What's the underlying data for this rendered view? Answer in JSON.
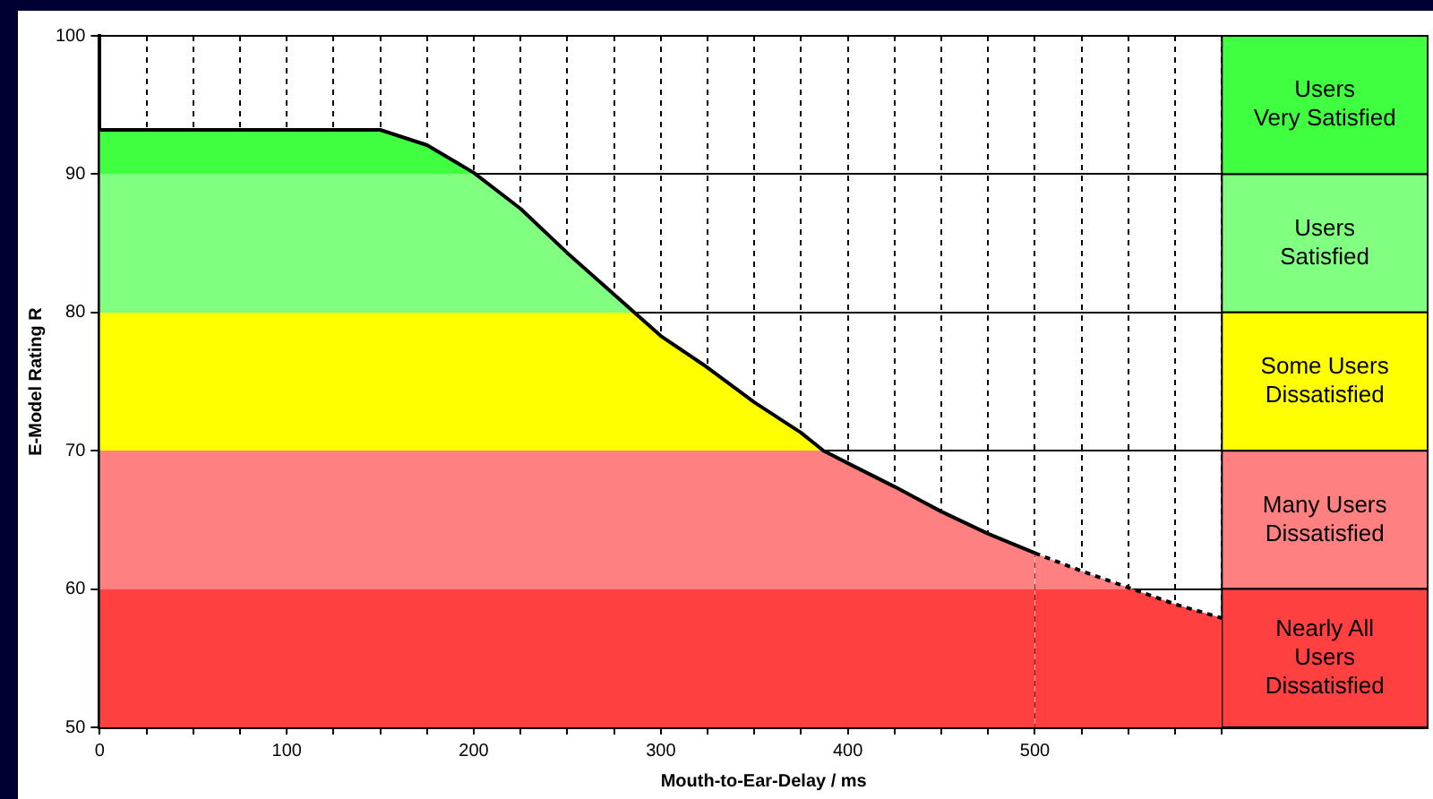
{
  "chart_data": {
    "type": "area",
    "xlabel": "Mouth-to-Ear-Delay / ms",
    "ylabel": "E-Model Rating R",
    "xlim": [
      0,
      710
    ],
    "ylim": [
      50,
      100
    ],
    "xticks": [
      0,
      {
        "value": 25,
        "label": null
      },
      {
        "value": 50,
        "label": null
      },
      {
        "value": 75,
        "label": null
      },
      100,
      {
        "value": 125,
        "label": null
      },
      {
        "value": 150,
        "label": null
      },
      {
        "value": 175,
        "label": null
      },
      200,
      {
        "value": 225,
        "label": null
      },
      {
        "value": 250,
        "label": null
      },
      {
        "value": 275,
        "label": null
      },
      300,
      {
        "value": 325,
        "label": null
      },
      {
        "value": 350,
        "label": null
      },
      {
        "value": 375,
        "label": null
      },
      400,
      {
        "value": 425,
        "label": null
      },
      {
        "value": 450,
        "label": null
      },
      {
        "value": 475,
        "label": null
      },
      500,
      {
        "value": 525,
        "label": null
      },
      {
        "value": 550,
        "label": null
      },
      {
        "value": 575,
        "label": null
      },
      {
        "value": 600,
        "label": null
      }
    ],
    "yticks": [
      50,
      60,
      70,
      80,
      90,
      100
    ],
    "grid": true,
    "legend": false,
    "series": [
      {
        "color": "#000000",
        "line_style": "solid",
        "x": [
          0,
          50,
          100,
          125,
          150,
          175,
          200,
          225,
          250,
          275,
          285,
          300,
          323,
          350,
          375,
          387,
          400,
          425,
          450,
          475,
          500
        ],
        "values": [
          93.2,
          93.2,
          93.2,
          93.2,
          93.2,
          92.1,
          90.1,
          87.5,
          84.3,
          81.3,
          80.1,
          78.3,
          76.2,
          73.5,
          71.3,
          70.0,
          69.1,
          67.4,
          65.6,
          64.0,
          62.6
        ]
      },
      {
        "color": "#000000",
        "line_style": "dashed",
        "x": [
          500,
          525,
          550,
          575,
          600
        ],
        "values": [
          62.6,
          61.3,
          60.1,
          58.9,
          57.9
        ]
      }
    ],
    "bands": [
      {
        "axis": "y",
        "from": 90,
        "to": 100,
        "label": "Users\nVery Satisfied",
        "color": "#40ff40"
      },
      {
        "axis": "y",
        "from": 80,
        "to": 90,
        "label": "Users\nSatisfied",
        "color": "#80ff80"
      },
      {
        "axis": "y",
        "from": 70,
        "to": 80,
        "label": "Some Users\nDissatisfied",
        "color": "#ffff00"
      },
      {
        "axis": "y",
        "from": 60,
        "to": 70,
        "label": "Many Users\nDissatisfied",
        "color": "#ff8080"
      },
      {
        "axis": "y",
        "from": 50,
        "to": 60,
        "label": "Nearly All\nUsers\nDissatisfied",
        "color": "#ff4040"
      }
    ]
  }
}
